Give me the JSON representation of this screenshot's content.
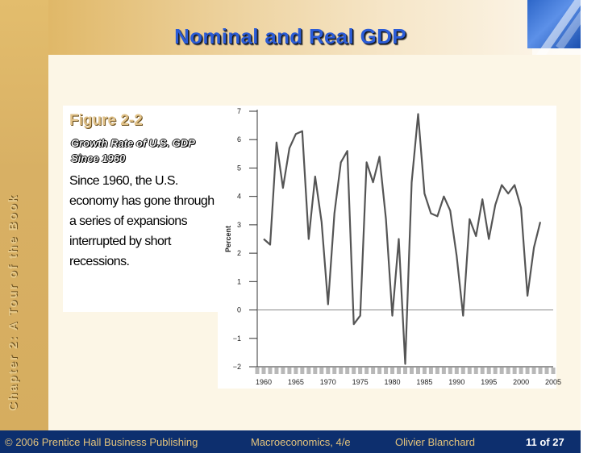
{
  "slide": {
    "title": "Nominal and Real GDP",
    "vertical_label": "Chapter 2: A Tour of the Book",
    "figure_label": "Figure 2-2",
    "figure_subtitle": "Growth Rate of U.S. GDP Since 1960",
    "figure_description": "Since 1960, the U.S. economy has gone through a series of expansions interrupted by short recessions."
  },
  "footer": {
    "copyright": "© 2006 Prentice Hall Business Publishing",
    "book": "Macroeconomics, 4/e",
    "author": "Olivier Blanchard",
    "page": "11 of 27"
  },
  "colors": {
    "title": "#2b5cd6",
    "footer_bg": "#0d2f6e",
    "footer_text": "#e3c37c"
  },
  "chart_data": {
    "type": "line",
    "ylabel": "Percent",
    "xlabel": "",
    "title": "",
    "xlim": [
      1959,
      2005
    ],
    "ylim": [
      -2,
      7
    ],
    "x_ticks": [
      1960,
      1965,
      1970,
      1975,
      1980,
      1985,
      1990,
      1995,
      2000,
      2005
    ],
    "y_ticks": [
      -2,
      -1,
      0,
      1,
      2,
      3,
      4,
      5,
      6,
      7
    ],
    "grid": false,
    "zero_line": true,
    "series": [
      {
        "x": [
          1960,
          1961,
          1962,
          1963,
          1964,
          1965,
          1966,
          1967,
          1968,
          1969,
          1970,
          1971,
          1972,
          1973,
          1974,
          1975,
          1976,
          1977,
          1978,
          1979,
          1980,
          1981,
          1982,
          1983,
          1984,
          1985,
          1986,
          1987,
          1988,
          1989,
          1990,
          1991,
          1992,
          1993,
          1994,
          1995,
          1996,
          1997,
          1998,
          1999,
          2000,
          2001,
          2002,
          2003
        ],
        "values": [
          2.5,
          2.3,
          5.9,
          4.3,
          5.7,
          6.2,
          6.3,
          2.5,
          4.7,
          3.1,
          0.2,
          3.4,
          5.2,
          5.6,
          -0.5,
          -0.2,
          5.2,
          4.5,
          5.4,
          3.2,
          -0.2,
          2.5,
          -1.9,
          4.5,
          6.9,
          4.1,
          3.4,
          3.3,
          4.0,
          3.5,
          1.9,
          -0.2,
          3.2,
          2.6,
          3.9,
          2.5,
          3.7,
          4.4,
          4.1,
          4.4,
          3.6,
          0.5,
          2.2,
          3.1
        ]
      }
    ]
  }
}
